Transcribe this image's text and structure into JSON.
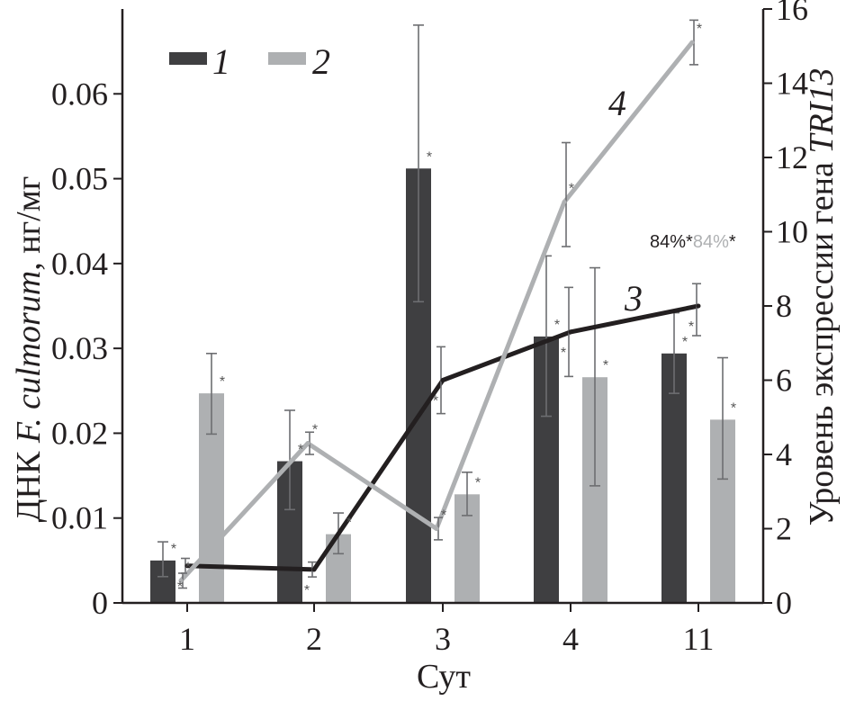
{
  "chart_data": {
    "type": "bar",
    "categories": [
      "1",
      "2",
      "3",
      "4",
      "11"
    ],
    "xlabel": "Сут",
    "ylabel_left": {
      "plain_prefix": "ДНК ",
      "italic": "F. culmorum",
      "plain_suffix": ", нг/мг"
    },
    "ylabel_right": {
      "plain": "Уровень экспрессии гена ",
      "italic": "TRI13"
    },
    "y_left": {
      "lim": [
        0,
        0.07
      ],
      "ticks": [
        "0",
        "0.01",
        "0.02",
        "0.03",
        "0.04",
        "0.05",
        "0.06"
      ]
    },
    "y_right": {
      "lim": [
        0,
        16
      ],
      "ticks": [
        "0",
        "2",
        "4",
        "6",
        "8",
        "10",
        "12",
        "14",
        "16"
      ]
    },
    "legend": [
      {
        "label": "1",
        "color": "#3f3f41"
      },
      {
        "label": "2",
        "color": "#aeb0b2"
      }
    ],
    "bar_series": [
      {
        "name": "1",
        "color": "#3f3f41",
        "values": [
          0.005,
          0.0167,
          0.0512,
          0.0314,
          0.0294
        ],
        "err_low": [
          0.0031,
          0.011,
          0.0355,
          0.022,
          0.0247
        ],
        "err_high": [
          0.0072,
          0.0227,
          0.0681,
          0.0409,
          0.0342
        ]
      },
      {
        "name": "2",
        "color": "#aeb0b2",
        "values": [
          0.0247,
          0.0081,
          0.0128,
          0.0266,
          0.0216
        ],
        "err_low": [
          0.0199,
          0.0058,
          0.0103,
          0.0138,
          0.0146
        ],
        "err_high": [
          0.0294,
          0.0106,
          0.0154,
          0.0395,
          0.0289
        ]
      }
    ],
    "line_series": [
      {
        "name": "3",
        "color": "#231f20",
        "values": [
          1.0,
          0.9,
          6.0,
          7.3,
          8.0
        ],
        "err_low": [
          0.8,
          0.7,
          5.1,
          6.1,
          7.2
        ],
        "err_high": [
          1.2,
          1.1,
          6.9,
          8.5,
          8.6
        ]
      },
      {
        "name": "4",
        "color": "#aeb0b2",
        "values": [
          0.6,
          4.3,
          2.0,
          10.8,
          15.1
        ],
        "err_low": [
          0.4,
          4.0,
          1.7,
          9.6,
          14.5
        ],
        "err_high": [
          0.8,
          4.6,
          2.3,
          12.4,
          15.7
        ]
      }
    ],
    "significance_marker": "*",
    "annotation": {
      "dark": "84%",
      "light": "84%"
    }
  }
}
